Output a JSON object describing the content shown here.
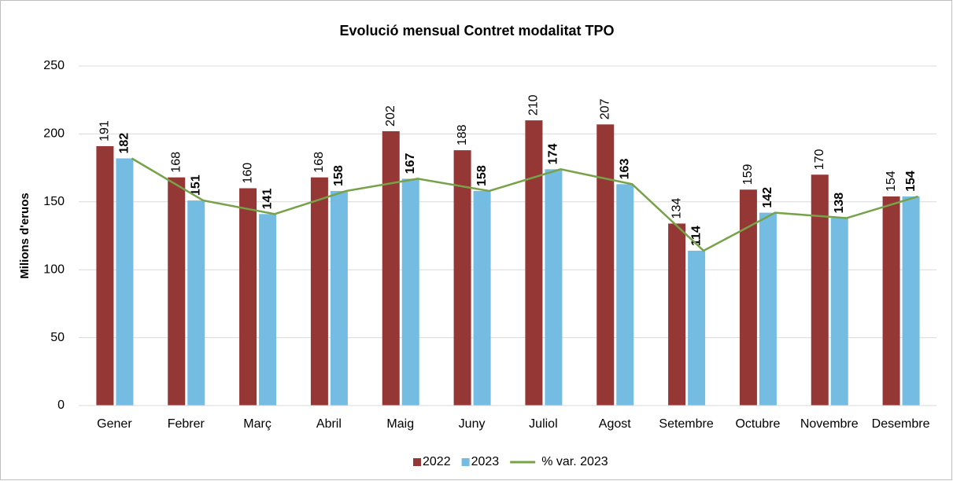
{
  "chart_data": {
    "type": "bar",
    "title": "Evolució mensual Contret modalitat TPO",
    "y_label": "Milions d'eruos",
    "categories": [
      "Gener",
      "Febrer",
      "Març",
      "Abril",
      "Maig",
      "Juny",
      "Juliol",
      "Agost",
      "Setembre",
      "Octubre",
      "Novembre",
      "Desembre"
    ],
    "series": [
      {
        "name": "2022",
        "color": "#953735",
        "values": [
          191,
          168,
          160,
          168,
          202,
          188,
          210,
          207,
          134,
          159,
          170,
          154
        ]
      },
      {
        "name": "2023",
        "color": "#74bce2",
        "values": [
          182,
          151,
          141,
          158,
          167,
          158,
          174,
          163,
          114,
          142,
          138,
          154
        ]
      },
      {
        "name": "% var. 2023",
        "color": "#77a24a",
        "type": "line",
        "values": [
          182,
          151,
          141,
          158,
          167,
          158,
          174,
          163,
          114,
          142,
          138,
          154
        ]
      }
    ],
    "ylim": [
      0,
      250
    ],
    "yticks": [
      0,
      50,
      100,
      150,
      200,
      250
    ],
    "grid": true,
    "legend": "bottom"
  }
}
